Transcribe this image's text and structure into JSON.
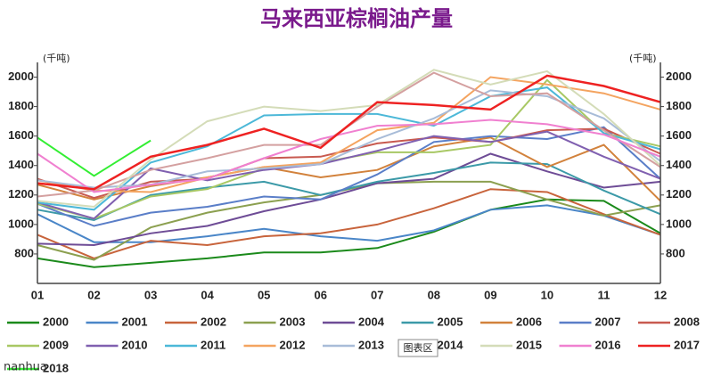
{
  "chart_data": {
    "type": "line",
    "title": "马来西亚棕榈油产量",
    "y_label": "(千吨)",
    "y2_label": "(千吨)",
    "tooltip": "图表区",
    "watermark": "nanhua",
    "categories": [
      "01",
      "02",
      "03",
      "04",
      "05",
      "06",
      "07",
      "08",
      "09",
      "10",
      "11",
      "12"
    ],
    "ylim": [
      600,
      2100
    ],
    "yticks": [
      800,
      1000,
      1200,
      1400,
      1600,
      1800,
      2000
    ],
    "y2lim": [
      600,
      2100
    ],
    "y2ticks": [
      800,
      1000,
      1200,
      1400,
      1600,
      1800,
      2000
    ],
    "grid": false,
    "series": [
      {
        "name": "2000",
        "color": "#1b8a1b",
        "values": [
          770,
          710,
          740,
          770,
          810,
          810,
          840,
          950,
          1100,
          1170,
          1160,
          940
        ]
      },
      {
        "name": "2001",
        "color": "#4a86c8",
        "values": [
          1070,
          880,
          880,
          920,
          970,
          920,
          890,
          960,
          1100,
          1130,
          1060,
          930
        ]
      },
      {
        "name": "2002",
        "color": "#c8643c",
        "values": [
          930,
          770,
          890,
          860,
          920,
          940,
          1000,
          1110,
          1240,
          1220,
          1070,
          930
        ]
      },
      {
        "name": "2003",
        "color": "#8ca050",
        "values": [
          860,
          760,
          980,
          1080,
          1150,
          1200,
          1280,
          1290,
          1290,
          1170,
          1060,
          1130
        ]
      },
      {
        "name": "2004",
        "color": "#6e4c96",
        "values": [
          870,
          860,
          940,
          990,
          1090,
          1170,
          1280,
          1310,
          1480,
          1360,
          1250,
          1290
        ]
      },
      {
        "name": "2005",
        "color": "#3c9aa8",
        "values": [
          1100,
          1030,
          1200,
          1250,
          1290,
          1200,
          1290,
          1350,
          1420,
          1410,
          1230,
          1070
        ]
      },
      {
        "name": "2006",
        "color": "#d2823c",
        "values": [
          1270,
          1170,
          1260,
          1320,
          1390,
          1320,
          1370,
          1530,
          1590,
          1390,
          1540,
          1160
        ]
      },
      {
        "name": "2007",
        "color": "#5a7ec8",
        "values": [
          1140,
          990,
          1080,
          1120,
          1190,
          1170,
          1340,
          1560,
          1600,
          1580,
          1660,
          1310
        ]
      },
      {
        "name": "2008",
        "color": "#c85a50",
        "values": [
          1310,
          1180,
          1290,
          1310,
          1450,
          1460,
          1550,
          1590,
          1560,
          1640,
          1650,
          1480
        ]
      },
      {
        "name": "2009",
        "color": "#a8c864",
        "values": [
          1140,
          1040,
          1190,
          1240,
          1380,
          1420,
          1490,
          1490,
          1540,
          1980,
          1620,
          1530
        ]
      },
      {
        "name": "2010",
        "color": "#8060b0",
        "values": [
          1150,
          1040,
          1380,
          1300,
          1370,
          1410,
          1500,
          1600,
          1560,
          1630,
          1460,
          1310
        ]
      },
      {
        "name": "2011",
        "color": "#4cb8d8",
        "values": [
          1150,
          1100,
          1420,
          1530,
          1740,
          1750,
          1750,
          1670,
          1870,
          1930,
          1620,
          1510
        ]
      },
      {
        "name": "2012",
        "color": "#f4a460",
        "values": [
          1300,
          1230,
          1220,
          1320,
          1390,
          1420,
          1640,
          1690,
          2000,
          1950,
          1890,
          1780
        ]
      },
      {
        "name": "2013",
        "color": "#a8bcd8",
        "values": [
          1300,
          1250,
          1270,
          1360,
          1380,
          1410,
          1580,
          1720,
          1910,
          1870,
          1720,
          1430
        ]
      },
      {
        "name": "2014",
        "color": "#d4a0a0",
        "values": [
          1190,
          1230,
          1370,
          1450,
          1540,
          1540,
          1800,
          2030,
          1870,
          1890,
          1640,
          1390
        ]
      },
      {
        "name": "2015",
        "color": "#d4dcb8",
        "values": [
          1160,
          1120,
          1440,
          1700,
          1800,
          1770,
          1810,
          2050,
          1950,
          2040,
          1750,
          1400
        ]
      },
      {
        "name": "2016",
        "color": "#f080d0",
        "values": [
          1480,
          1220,
          1270,
          1310,
          1450,
          1580,
          1670,
          1680,
          1710,
          1680,
          1610,
          1460
        ]
      },
      {
        "name": "2017",
        "color": "#ee2222",
        "values": [
          1280,
          1240,
          1460,
          1540,
          1650,
          1520,
          1830,
          1810,
          1780,
          2010,
          1940,
          1830
        ]
      },
      {
        "name": "2018",
        "color": "#33ee33",
        "values": [
          1590,
          1330,
          1570,
          null,
          null,
          null,
          null,
          null,
          null,
          null,
          null,
          null
        ]
      }
    ]
  }
}
